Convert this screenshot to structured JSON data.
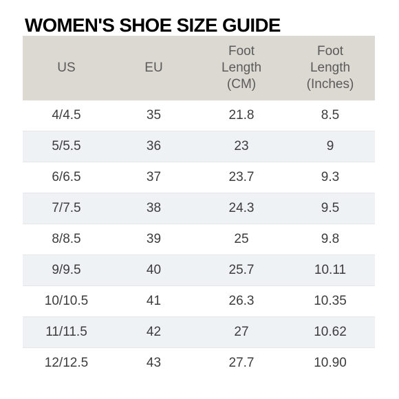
{
  "title": "WOMEN'S SHOE SIZE GUIDE",
  "headers": {
    "us": "US",
    "eu": "EU",
    "foot_cm": [
      "Foot",
      "Length",
      "(CM)"
    ],
    "foot_in": [
      "Foot",
      "Length",
      "(Inches)"
    ]
  },
  "rows": [
    {
      "us": "4/4.5",
      "eu": "35",
      "cm": "21.8",
      "inches": "8.5"
    },
    {
      "us": "5/5.5",
      "eu": "36",
      "cm": "23",
      "inches": "9"
    },
    {
      "us": "6/6.5",
      "eu": "37",
      "cm": "23.7",
      "inches": "9.3"
    },
    {
      "us": "7/7.5",
      "eu": "38",
      "cm": "24.3",
      "inches": "9.5"
    },
    {
      "us": "8/8.5",
      "eu": "39",
      "cm": "25",
      "inches": "9.8"
    },
    {
      "us": "9/9.5",
      "eu": "40",
      "cm": "25.7",
      "inches": "10.11"
    },
    {
      "us": "10/10.5",
      "eu": "41",
      "cm": "26.3",
      "inches": "10.35"
    },
    {
      "us": "11/11.5",
      "eu": "42",
      "cm": "27",
      "inches": "10.62"
    },
    {
      "us": "12/12.5",
      "eu": "43",
      "cm": "27.7",
      "inches": "10.90"
    }
  ],
  "colors": {
    "header_bg": "#dcd9d2",
    "alt_row_bg": "#eef2f5",
    "title": "#000000"
  }
}
